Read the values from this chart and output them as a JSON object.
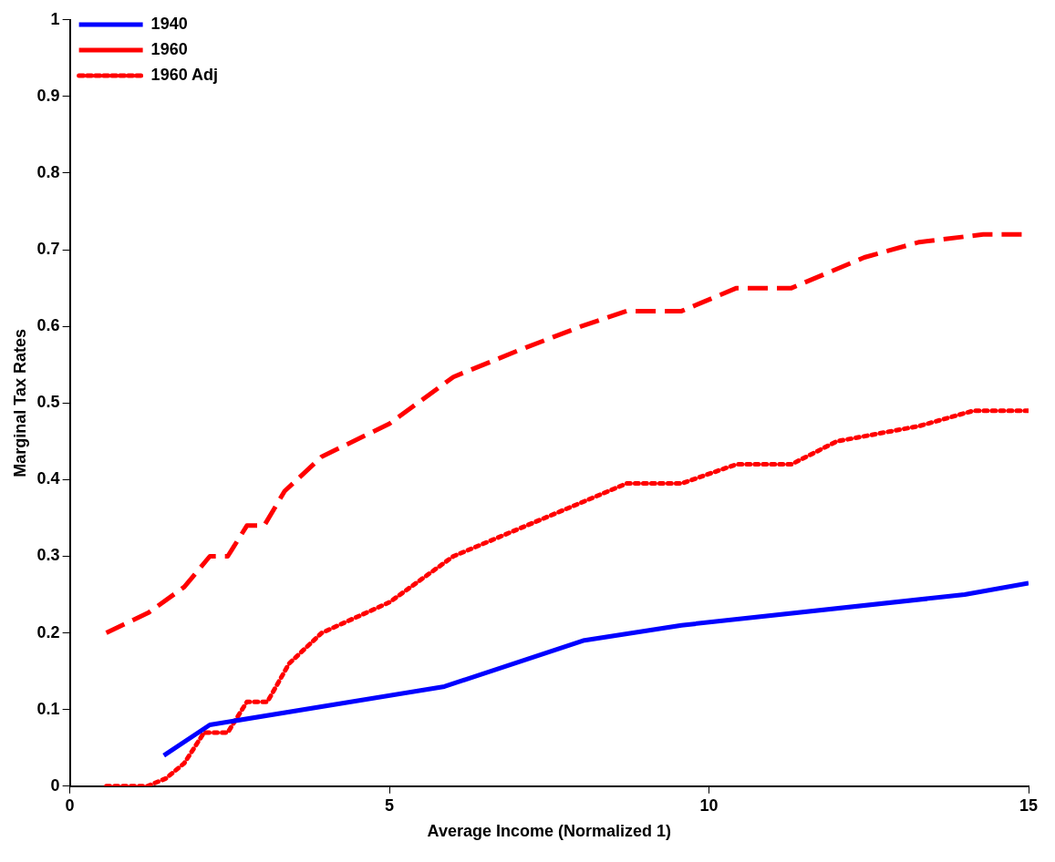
{
  "chart_data": {
    "type": "line",
    "xlabel": "Average Income (Normalized 1)",
    "ylabel": "Marginal Tax Rates",
    "xlim": [
      0,
      15
    ],
    "xticks": [
      0,
      5,
      10,
      15
    ],
    "ylim": [
      0,
      1
    ],
    "yticks": [
      0,
      0.1,
      0.2,
      0.3,
      0.4,
      0.5,
      0.6,
      0.7,
      0.8,
      0.9,
      1
    ],
    "grid": false,
    "legend": "top left",
    "marker": "none",
    "series": [
      {
        "name": "1940",
        "color": "#0000ff",
        "line_style": "solid",
        "x": [
          1.47,
          2.19,
          5.86,
          8.03,
          9.57,
          14,
          15
        ],
        "values": [
          0.04,
          0.08,
          0.13,
          0.19,
          0.21,
          0.25,
          0.265
        ]
      },
      {
        "name": "1960",
        "color": "#ff0000",
        "line_style": "dashed",
        "x": [
          0.57,
          1.24,
          1.79,
          2.19,
          2.47,
          2.77,
          3.04,
          3.36,
          3.94,
          5,
          6,
          7,
          8,
          8.71,
          9.57,
          10.43,
          11.29,
          12.43,
          13.29,
          14.29,
          15
        ],
        "values": [
          0.2,
          0.227,
          0.26,
          0.3,
          0.3,
          0.34,
          0.34,
          0.385,
          0.43,
          0.473,
          0.534,
          0.568,
          0.6,
          0.62,
          0.62,
          0.65,
          0.65,
          0.69,
          0.71,
          0.72,
          0.72
        ]
      },
      {
        "name": "1960 Adj",
        "color": "#ff0000",
        "line_style": "dotted",
        "x": [
          0.57,
          1.21,
          1.5,
          1.79,
          2.1,
          2.47,
          2.77,
          3.09,
          3.43,
          3.94,
          5,
          6,
          7,
          8,
          8.71,
          9.57,
          10.43,
          11.29,
          12,
          13.29,
          14.14,
          15
        ],
        "values": [
          0,
          0,
          0.01,
          0.03,
          0.07,
          0.07,
          0.11,
          0.11,
          0.16,
          0.2,
          0.24,
          0.3,
          0.335,
          0.37,
          0.395,
          0.395,
          0.42,
          0.42,
          0.45,
          0.47,
          0.49,
          0.49
        ]
      }
    ]
  }
}
